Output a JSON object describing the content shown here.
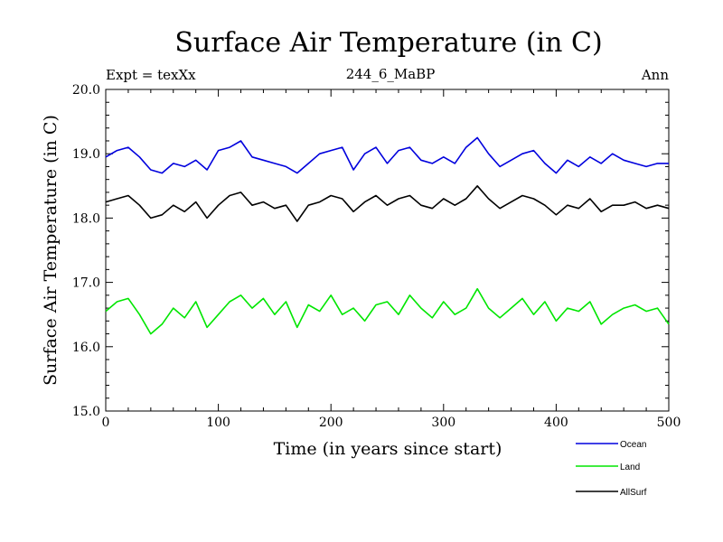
{
  "chart_data": {
    "type": "line",
    "title": "Surface Air Temperature (in C)",
    "subtitle_left": "Expt = texXx",
    "subtitle_center": "244_6_MaBP",
    "subtitle_right": "Ann",
    "xlabel": "Time (in years since start)",
    "ylabel": "Surface Air Temperature (in C)",
    "xlim": [
      0,
      500
    ],
    "ylim": [
      15.0,
      20.0
    ],
    "xticks": [
      0,
      100,
      200,
      300,
      400,
      500
    ],
    "xtick_labels": [
      "0",
      "100",
      "200",
      "300",
      "400",
      "500"
    ],
    "yticks": [
      15.0,
      16.0,
      17.0,
      18.0,
      19.0,
      20.0
    ],
    "ytick_labels": [
      "15.0",
      "16.0",
      "17.0",
      "18.0",
      "19.0",
      "20.0"
    ],
    "legend_position": "bottom-right, below plot",
    "series": [
      {
        "name": "Ocean",
        "color": "#0000dd",
        "x": [
          0,
          10,
          20,
          30,
          40,
          50,
          60,
          70,
          80,
          90,
          100,
          110,
          120,
          130,
          140,
          150,
          160,
          170,
          180,
          190,
          200,
          210,
          220,
          230,
          240,
          250,
          260,
          270,
          280,
          290,
          300,
          310,
          320,
          330,
          340,
          350,
          360,
          370,
          380,
          390,
          400,
          410,
          420,
          430,
          440,
          450,
          460,
          470,
          480,
          490,
          500
        ],
        "values": [
          18.95,
          19.05,
          19.1,
          18.95,
          18.75,
          18.7,
          18.85,
          18.8,
          18.9,
          18.75,
          19.05,
          19.1,
          19.2,
          18.95,
          18.9,
          18.85,
          18.8,
          18.7,
          18.85,
          19.0,
          19.05,
          19.1,
          18.75,
          19.0,
          19.1,
          18.85,
          19.05,
          19.1,
          18.9,
          18.85,
          18.95,
          18.85,
          19.1,
          19.25,
          19.0,
          18.8,
          18.9,
          19.0,
          19.05,
          18.85,
          18.7,
          18.9,
          18.8,
          18.95,
          18.85,
          19.0,
          18.9,
          18.85,
          18.8,
          18.85,
          18.85
        ]
      },
      {
        "name": "Land",
        "color": "#00e600",
        "x": [
          0,
          10,
          20,
          30,
          40,
          50,
          60,
          70,
          80,
          90,
          100,
          110,
          120,
          130,
          140,
          150,
          160,
          170,
          180,
          190,
          200,
          210,
          220,
          230,
          240,
          250,
          260,
          270,
          280,
          290,
          300,
          310,
          320,
          330,
          340,
          350,
          360,
          370,
          380,
          390,
          400,
          410,
          420,
          430,
          440,
          450,
          460,
          470,
          480,
          490,
          500
        ],
        "values": [
          16.55,
          16.7,
          16.75,
          16.5,
          16.2,
          16.35,
          16.6,
          16.45,
          16.7,
          16.3,
          16.5,
          16.7,
          16.8,
          16.6,
          16.75,
          16.5,
          16.7,
          16.3,
          16.65,
          16.55,
          16.8,
          16.5,
          16.6,
          16.4,
          16.65,
          16.7,
          16.5,
          16.8,
          16.6,
          16.45,
          16.7,
          16.5,
          16.6,
          16.9,
          16.6,
          16.45,
          16.6,
          16.75,
          16.5,
          16.7,
          16.4,
          16.6,
          16.55,
          16.7,
          16.35,
          16.5,
          16.6,
          16.65,
          16.55,
          16.6,
          16.35
        ]
      },
      {
        "name": "AllSurf",
        "color": "#000000",
        "x": [
          0,
          10,
          20,
          30,
          40,
          50,
          60,
          70,
          80,
          90,
          100,
          110,
          120,
          130,
          140,
          150,
          160,
          170,
          180,
          190,
          200,
          210,
          220,
          230,
          240,
          250,
          260,
          270,
          280,
          290,
          300,
          310,
          320,
          330,
          340,
          350,
          360,
          370,
          380,
          390,
          400,
          410,
          420,
          430,
          440,
          450,
          460,
          470,
          480,
          490,
          500
        ],
        "values": [
          18.25,
          18.3,
          18.35,
          18.2,
          18.0,
          18.05,
          18.2,
          18.1,
          18.25,
          18.0,
          18.2,
          18.35,
          18.4,
          18.2,
          18.25,
          18.15,
          18.2,
          17.95,
          18.2,
          18.25,
          18.35,
          18.3,
          18.1,
          18.25,
          18.35,
          18.2,
          18.3,
          18.35,
          18.2,
          18.15,
          18.3,
          18.2,
          18.3,
          18.5,
          18.3,
          18.15,
          18.25,
          18.35,
          18.3,
          18.2,
          18.05,
          18.2,
          18.15,
          18.3,
          18.1,
          18.2,
          18.2,
          18.25,
          18.15,
          18.2,
          18.15
        ]
      }
    ]
  }
}
